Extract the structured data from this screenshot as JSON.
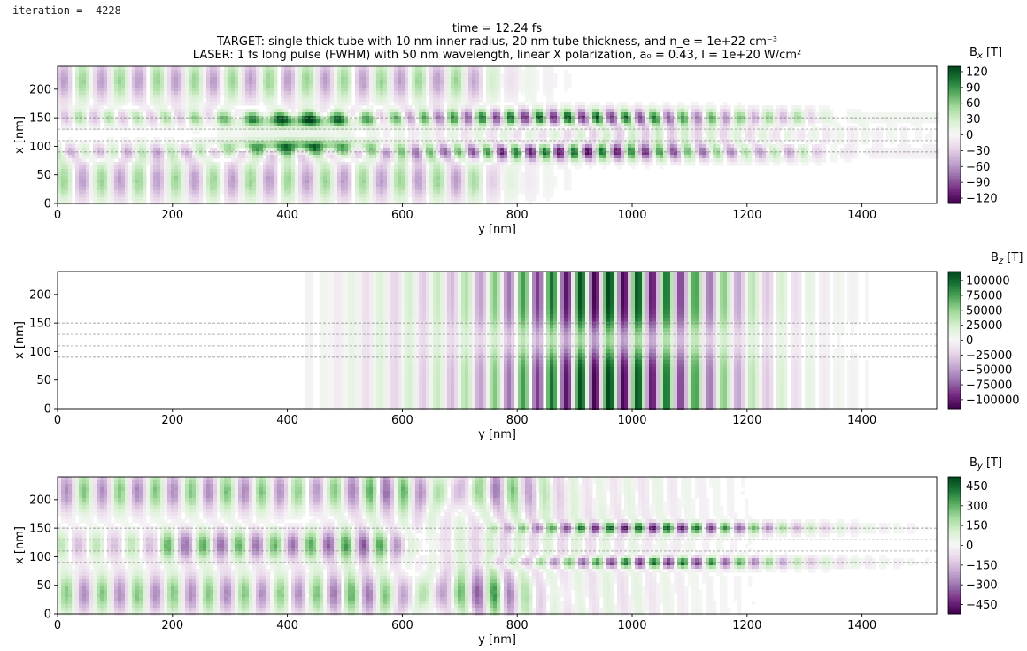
{
  "header": {
    "iteration_label": "iteration = ",
    "iteration_value": "4228"
  },
  "title": {
    "time": "time = 12.24 fs",
    "target": "TARGET: single thick tube with 10 nm inner radius, 20 nm tube thickness, and n_e = 1e+22 cm⁻³",
    "laser": "LASER: 1 fs long pulse (FWHM) with 50 nm wavelength, linear X polarization, a₀ = 0.43, I = 1e+20 W/cm²"
  },
  "colors": {
    "cmap": [
      "#40004b",
      "#762a83",
      "#9970ab",
      "#c2a5cf",
      "#e7d4e8",
      "#f7f7f7",
      "#d9f0d3",
      "#a6dba0",
      "#5aae61",
      "#1b7837",
      "#00441b"
    ],
    "reference_line": "#888888"
  },
  "chart_data": [
    {
      "type": "heatmap",
      "field": "Bx",
      "colorbar_label": "B",
      "colorbar_sub": "x",
      "colorbar_unit": "[T]",
      "clim": [
        -130,
        130
      ],
      "colorbar_ticks": [
        "120",
        "90",
        "60",
        "30",
        "0",
        "−30",
        "−60",
        "−90",
        "−120"
      ],
      "colorbar_tick_values": [
        120,
        90,
        60,
        30,
        0,
        -30,
        -60,
        -90,
        -120
      ],
      "xlabel": "y [nm]",
      "ylabel": "x [nm]",
      "xlim": [
        0,
        1530
      ],
      "ylim": [
        0,
        240
      ],
      "xticks": [
        0,
        200,
        400,
        600,
        800,
        1000,
        1200,
        1400
      ],
      "yticks": [
        0,
        50,
        100,
        150,
        200
      ],
      "reference_lines_x": [
        90,
        110,
        130,
        150
      ],
      "wavelength_nm": 50,
      "features": [
        {
          "region": "tube walls x≈85–155 nm",
          "y_range": [
            0,
            1300
          ],
          "pattern": "alternating purple/green lobes, strongest 800–950 nm (≈ −120 to +120 T)"
        },
        {
          "region": "outer lobes x≈0–80 and 170–240 nm",
          "y_range": [
            0,
            700
          ],
          "pattern": "alternating purple/green blobs, ±60 T"
        },
        {
          "region": "dense green band inside walls",
          "y_range": [
            300,
            520
          ],
          "pattern": "dark green speckle ≈ +120 T"
        }
      ]
    },
    {
      "type": "heatmap",
      "field": "Bz",
      "colorbar_label": "B",
      "colorbar_sub": "z",
      "colorbar_unit": "[T]",
      "clim": [
        -115000,
        115000
      ],
      "colorbar_ticks": [
        "100000",
        "75000",
        "50000",
        "25000",
        "0",
        "−25000",
        "−50000",
        "−75000",
        "−100000"
      ],
      "colorbar_tick_values": [
        100000,
        75000,
        50000,
        25000,
        0,
        -25000,
        -50000,
        -75000,
        -100000
      ],
      "xlabel": "y [nm]",
      "ylabel": "x [nm]",
      "xlim": [
        0,
        1530
      ],
      "ylim": [
        0,
        240
      ],
      "xticks": [
        0,
        200,
        400,
        600,
        800,
        1000,
        1200,
        1400
      ],
      "yticks": [
        0,
        50,
        100,
        150,
        200
      ],
      "reference_lines_x": [
        90,
        110,
        130,
        150
      ],
      "wavelength_nm": 50,
      "features": [
        {
          "region": "full height",
          "y_range": [
            560,
            1350
          ],
          "pattern": "laser pulse stripes, peak ≈ ±110000 T centred near y ≈ 960 nm; weaker in tube region x≈90–150 nm"
        }
      ]
    },
    {
      "type": "heatmap",
      "field": "By",
      "colorbar_label": "B",
      "colorbar_sub": "y",
      "colorbar_unit": "[T]",
      "clim": [
        -520,
        520
      ],
      "colorbar_ticks": [
        "450",
        "300",
        "150",
        "0",
        "−150",
        "−300",
        "−450"
      ],
      "colorbar_tick_values": [
        450,
        300,
        150,
        0,
        -150,
        -300,
        -450
      ],
      "xlabel": "y [nm]",
      "ylabel": "x [nm]",
      "xlim": [
        0,
        1530
      ],
      "ylim": [
        0,
        240
      ],
      "xticks": [
        0,
        200,
        400,
        600,
        800,
        1000,
        1200,
        1400
      ],
      "yticks": [
        0,
        50,
        100,
        150,
        200
      ],
      "reference_lines_x": [
        90,
        110,
        130,
        150
      ],
      "wavelength_nm": 50,
      "features": [
        {
          "region": "tube walls x≈90 and 150 nm",
          "y_range": [
            780,
            1260
          ],
          "pattern": "dark speckled lobes ≈ ±450 T"
        },
        {
          "region": "inner band x≈100–140 nm",
          "y_range": [
            200,
            560
          ],
          "pattern": "alternating purple/green ≈ ±250 T"
        },
        {
          "region": "outer lobes",
          "y_range": [
            0,
            780
          ],
          "pattern": "alternating bands ±300 T"
        }
      ]
    }
  ]
}
